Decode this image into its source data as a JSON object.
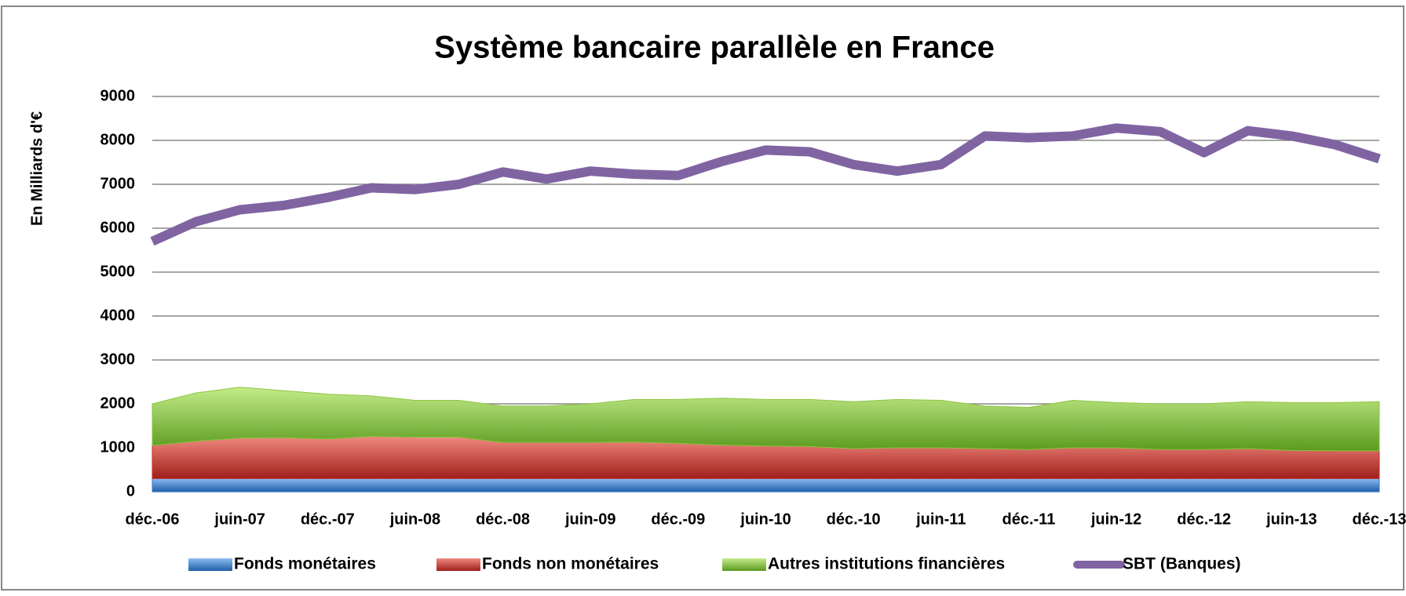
{
  "chart_data": {
    "type": "area",
    "stacked": true,
    "title": "Système bancaire parallèle en France",
    "y_label": "En Milliards d'€",
    "categories": [
      "déc.-06",
      null,
      "juin-07",
      null,
      "déc.-07",
      null,
      "juin-08",
      null,
      "déc.-08",
      null,
      "juin-09",
      null,
      "déc.-09",
      null,
      "juin-10",
      null,
      "déc.-10",
      null,
      "juin-11",
      null,
      "déc.-11",
      null,
      "juin-12",
      null,
      "déc.-12",
      null,
      "juin-13",
      null,
      "déc.-13"
    ],
    "ylim": [
      0,
      9000
    ],
    "yticks": [
      0,
      1000,
      2000,
      3000,
      4000,
      5000,
      6000,
      7000,
      8000,
      9000
    ],
    "grid": true,
    "legend": "bottom",
    "series": [
      {
        "name": "Fonds monétaires",
        "color": "#3a7fd0",
        "type": "area",
        "values": [
          300,
          300,
          300,
          300,
          300,
          300,
          300,
          300,
          300,
          300,
          300,
          300,
          300,
          300,
          300,
          300,
          300,
          300,
          300,
          300,
          300,
          300,
          300,
          300,
          300,
          300,
          300,
          300,
          300
        ]
      },
      {
        "name": "Fonds non monétaires",
        "color": "#c8322c",
        "type": "area",
        "values": [
          750,
          850,
          920,
          930,
          900,
          960,
          940,
          940,
          820,
          820,
          820,
          830,
          800,
          760,
          740,
          730,
          680,
          700,
          700,
          680,
          660,
          700,
          700,
          660,
          660,
          680,
          640,
          630,
          630
        ]
      },
      {
        "name": "Autres institutions financières",
        "color": "#8dc63f",
        "type": "area",
        "values": [
          950,
          1100,
          1160,
          1070,
          1020,
          920,
          840,
          840,
          830,
          830,
          880,
          970,
          1000,
          1070,
          1060,
          1070,
          1070,
          1100,
          1080,
          970,
          960,
          1080,
          1030,
          1040,
          1040,
          1070,
          1090,
          1100,
          1120
        ]
      },
      {
        "name": "SBT (Banques)",
        "color": "#8064a2",
        "type": "line",
        "values": [
          5700,
          6150,
          6420,
          6520,
          6700,
          6920,
          6880,
          7000,
          7280,
          7120,
          7300,
          7230,
          7200,
          7520,
          7780,
          7740,
          7450,
          7300,
          7450,
          8100,
          8060,
          8100,
          8280,
          8200,
          7720,
          8220,
          8100,
          7900,
          7580
        ]
      }
    ]
  }
}
